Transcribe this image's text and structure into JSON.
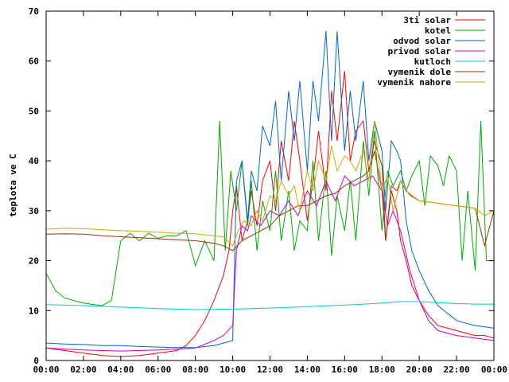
{
  "chart_data": {
    "type": "line",
    "xlabel": "",
    "ylabel": "teplota ve C",
    "x_ticks": [
      "00:00",
      "02:00",
      "04:00",
      "06:00",
      "08:00",
      "10:00",
      "12:00",
      "14:00",
      "16:00",
      "18:00",
      "20:00",
      "22:00",
      "00:00"
    ],
    "y_ticks": [
      "0",
      "10",
      "20",
      "30",
      "40",
      "50",
      "60",
      "70"
    ],
    "xlim": [
      0,
      24
    ],
    "ylim": [
      0,
      70
    ],
    "grid": false,
    "legend_position": "top-right",
    "series": [
      {
        "name": "3ti solar",
        "color": "#ff0000",
        "x": [
          0,
          1,
          2,
          3,
          4,
          5,
          6,
          7,
          7.5,
          8,
          8.5,
          9,
          9.5,
          9.8,
          10,
          10.2,
          10.5,
          10.8,
          11,
          11.3,
          11.6,
          12,
          12.3,
          12.6,
          13,
          13.3,
          13.6,
          14,
          14.3,
          14.6,
          15,
          15.3,
          15.6,
          16,
          16.3,
          16.6,
          17,
          17.3,
          17.6,
          18,
          18.2,
          18.5,
          18.8,
          19,
          19.3,
          19.6,
          20,
          20.5,
          21,
          22,
          23,
          23.5,
          24
        ],
        "y": [
          2.5,
          2,
          1.5,
          1,
          0.8,
          1,
          1.5,
          2,
          3,
          5,
          8,
          12,
          17,
          22,
          30,
          35,
          24,
          28,
          34,
          27,
          36,
          40,
          30,
          44,
          36,
          48,
          40,
          28,
          36,
          46,
          34,
          54,
          44,
          58,
          40,
          46,
          48,
          38,
          42,
          34,
          24,
          34,
          30,
          24,
          20,
          15,
          12,
          9,
          7,
          6,
          5,
          5,
          4.5
        ]
      },
      {
        "name": "kotel",
        "color": "#00aa00",
        "x": [
          0,
          0.5,
          1,
          2,
          3,
          3.5,
          4,
          4.5,
          5,
          5.5,
          6,
          6.5,
          7,
          7.5,
          8,
          8.5,
          9,
          9.3,
          9.6,
          9.9,
          10.2,
          10.5,
          10.8,
          11,
          11.3,
          11.6,
          12,
          12.3,
          12.6,
          13,
          13.3,
          13.6,
          14,
          14.3,
          14.6,
          15,
          15.3,
          15.6,
          16,
          16.3,
          16.6,
          17,
          17.3,
          17.6,
          18,
          18.3,
          18.6,
          19,
          19.3,
          19.6,
          20,
          20.3,
          20.6,
          21,
          21.3,
          21.6,
          22,
          22.3,
          22.6,
          23,
          23.3,
          23.6,
          24
        ],
        "y": [
          17.5,
          14,
          12.5,
          11.5,
          11,
          12,
          24,
          25.5,
          24,
          25.5,
          24.5,
          25,
          25,
          26,
          19,
          24,
          20,
          48,
          22,
          38,
          30,
          40,
          27,
          36,
          22,
          32,
          26,
          38,
          24,
          34,
          22,
          28,
          26,
          40,
          24,
          38,
          21,
          33,
          26,
          36,
          24,
          44,
          33,
          46,
          26,
          38,
          35,
          38,
          34,
          37,
          40,
          31,
          41,
          39,
          35,
          41,
          38,
          20,
          34,
          18,
          48,
          20,
          20
        ]
      },
      {
        "name": "odvod solar",
        "color": "#0066cc",
        "x": [
          0,
          1,
          2,
          3,
          4,
          5,
          6,
          7,
          8,
          9,
          9.5,
          10,
          10.2,
          10.5,
          10.8,
          11,
          11.3,
          11.6,
          12,
          12.3,
          12.6,
          13,
          13.3,
          13.6,
          14,
          14.3,
          14.6,
          15,
          15.3,
          15.6,
          16,
          16.3,
          16.6,
          17,
          17.3,
          17.6,
          18,
          18.2,
          18.5,
          18.8,
          19,
          19.3,
          19.6,
          20,
          20.5,
          21,
          22,
          23,
          24
        ],
        "y": [
          3.5,
          3.3,
          3.2,
          3,
          3,
          2.8,
          2.7,
          2.6,
          2.6,
          3,
          3.5,
          4,
          36,
          40,
          28,
          38,
          34,
          47,
          43,
          52,
          36,
          54,
          44,
          56,
          38,
          56,
          48,
          66,
          44,
          66,
          42,
          54,
          44,
          56,
          40,
          48,
          42,
          30,
          44,
          42,
          40,
          28,
          22,
          18,
          14,
          11,
          8,
          7,
          6.5
        ]
      },
      {
        "name": "privod solar",
        "color": "#cc00cc",
        "x": [
          0,
          1,
          2,
          3,
          4,
          5,
          6,
          7,
          8,
          9,
          9.5,
          10,
          10.2,
          10.5,
          10.8,
          11,
          11.5,
          12,
          12.5,
          13,
          13.5,
          14,
          14.5,
          15,
          15.5,
          16,
          16.5,
          17,
          17.5,
          18,
          18.3,
          18.6,
          19,
          19.5,
          20,
          20.5,
          21,
          22,
          23,
          24
        ],
        "y": [
          2.5,
          2.3,
          2.1,
          2,
          1.9,
          2,
          2.1,
          2.3,
          2.5,
          4,
          5,
          7,
          22,
          27,
          26,
          29,
          27,
          30,
          29,
          32,
          29,
          34,
          31,
          36,
          32,
          37,
          35,
          36,
          37,
          34,
          27,
          30,
          26,
          18,
          12,
          8,
          6,
          5,
          4.5,
          4
        ]
      },
      {
        "name": "kutloch",
        "color": "#00cccc",
        "x": [
          0,
          2,
          4,
          6,
          8,
          10,
          12,
          14,
          16,
          18,
          19,
          20,
          21,
          22,
          23,
          24
        ],
        "y": [
          11.2,
          11,
          10.7,
          10.4,
          10.2,
          10.3,
          10.5,
          10.8,
          11.1,
          11.5,
          11.8,
          11.8,
          11.6,
          11.4,
          11.3,
          11.3
        ]
      },
      {
        "name": "vymenik dole",
        "color": "#993300",
        "x": [
          0,
          1,
          2,
          3,
          4,
          5,
          6,
          7,
          8,
          9,
          9.5,
          10,
          10.5,
          11,
          11.5,
          12,
          12.5,
          13,
          13.5,
          14,
          14.5,
          15,
          15.5,
          16,
          16.5,
          17,
          17.3,
          17.6,
          18,
          18.2,
          18.5,
          18.8,
          19,
          19.3,
          19.6,
          20,
          21,
          22,
          23,
          23.5,
          24
        ],
        "y": [
          25.3,
          25.4,
          25.3,
          25,
          24.8,
          24.6,
          24.4,
          24.2,
          24,
          23.5,
          23,
          22,
          24,
          25,
          26,
          27,
          29,
          30,
          31,
          31,
          32,
          33,
          33.5,
          35,
          36,
          37,
          38,
          44,
          39,
          24,
          35,
          34,
          36,
          34,
          33,
          32,
          31.5,
          31,
          30.5,
          23,
          30
        ]
      },
      {
        "name": "vymenik nahore",
        "color": "#ccaa00",
        "x": [
          0,
          1,
          2,
          3,
          4,
          5,
          6,
          7,
          8,
          9,
          9.5,
          10,
          10.3,
          10.6,
          11,
          11.3,
          11.6,
          12,
          12.3,
          12.6,
          13,
          13.3,
          13.6,
          14,
          14.3,
          14.6,
          15,
          15.3,
          15.6,
          16,
          16.3,
          16.6,
          17,
          17.3,
          17.6,
          18,
          18.3,
          18.6,
          19,
          19.5,
          20,
          21,
          22,
          23,
          23.5,
          24
        ],
        "y": [
          26.3,
          26.5,
          26.4,
          26.2,
          26,
          25.9,
          25.7,
          25.5,
          25.4,
          25,
          24.8,
          23,
          26,
          28,
          27,
          30,
          28,
          33,
          32,
          36,
          33,
          35,
          30,
          38,
          34,
          40,
          36,
          43,
          38,
          41,
          40,
          38,
          42,
          36,
          48,
          34,
          37,
          30,
          36,
          33,
          32,
          31.5,
          31,
          30.5,
          29,
          30
        ]
      }
    ]
  }
}
